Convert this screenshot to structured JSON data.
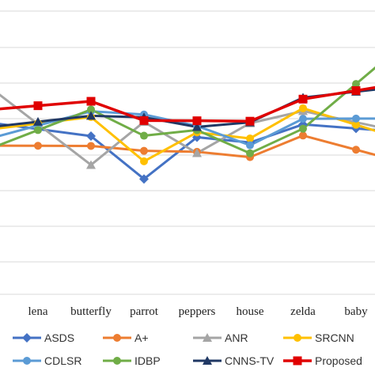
{
  "chart_data": {
    "type": "line",
    "title": "",
    "xlabel": "",
    "ylabel": "",
    "categories": [
      "lena",
      "butterfly",
      "parrot",
      "peppers",
      "house",
      "zelda",
      "baby"
    ],
    "grid": true,
    "legend_position": "bottom",
    "series": [
      {
        "name": "ASDS",
        "color": "#4472c4",
        "marker": "diamond",
        "values": [
          7.15,
          5.18,
          -6.78,
          4.87,
          3.39,
          8.44,
          7.31
        ]
      },
      {
        "name": "A+",
        "color": "#ed7d31",
        "marker": "circle",
        "values": [
          2.48,
          2.44,
          1.07,
          0.8,
          -0.68,
          5.34,
          1.38
        ]
      },
      {
        "name": "ANR",
        "color": "#a5a5a5",
        "marker": "triangle",
        "values": [
          8.5,
          -2.86,
          9.14,
          0.43,
          8.78,
          12.18,
          9.04
        ]
      },
      {
        "name": "SRCNN",
        "color": "#ffc000",
        "marker": "circle",
        "values": [
          8.7,
          10.5,
          -1.85,
          6.22,
          4.53,
          12.95,
          8.35
        ]
      },
      {
        "name": "CDLSR",
        "color": "#5b9bd5",
        "marker": "circle",
        "values": [
          8.14,
          12.11,
          11.2,
          8.02,
          2.62,
          10.02,
          10.06
        ]
      },
      {
        "name": "IDBP",
        "color": "#70ad47",
        "marker": "circle",
        "values": [
          6.86,
          12.59,
          5.29,
          6.86,
          0.4,
          7.25,
          19.73
        ]
      },
      {
        "name": "CNNS-TV",
        "color": "#203864",
        "marker": "triangle",
        "values": [
          9.18,
          10.84,
          10.43,
          7.73,
          9.02,
          15.91,
          17.57
        ]
      },
      {
        "name": "Proposed",
        "color": "#e00000",
        "marker": "square",
        "values": [
          13.66,
          14.89,
          9.52,
          9.46,
          9.34,
          15.5,
          17.87
        ]
      }
    ]
  }
}
